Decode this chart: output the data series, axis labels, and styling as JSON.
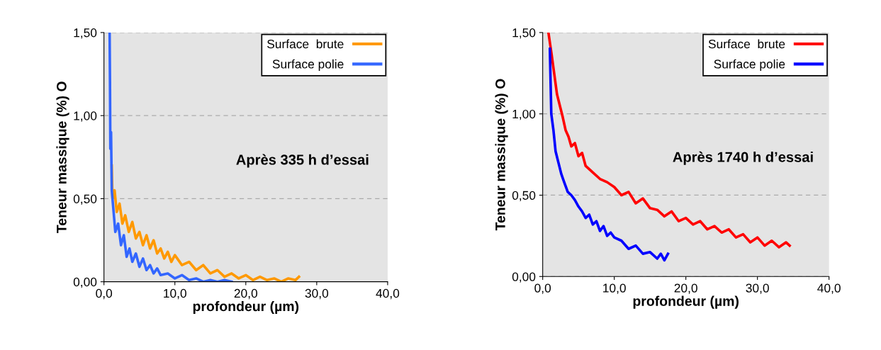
{
  "chart_data": [
    {
      "type": "line",
      "xlabel": "profondeur (µm)",
      "ylabel": "Teneur massique (%) O",
      "annotations": [
        "Après 335 h d’essai"
      ],
      "legend": "top right",
      "grid": "y",
      "line_style": "solid",
      "marker": "none",
      "xlim": [
        0,
        40
      ],
      "ylim": [
        0,
        1.5
      ],
      "xticks": [
        {
          "value": 0,
          "label": "0,0"
        },
        {
          "value": 10,
          "label": "10,0"
        },
        {
          "value": 20,
          "label": "20,0"
        },
        {
          "value": 30,
          "label": "30,0"
        },
        {
          "value": 40,
          "label": "40,0"
        }
      ],
      "yticks": [
        {
          "value": 0,
          "label": "0,00"
        },
        {
          "value": 0.5,
          "label": "0,50"
        },
        {
          "value": 1,
          "label": "1,00"
        },
        {
          "value": 1.5,
          "label": "1,50"
        }
      ],
      "series": [
        {
          "name": "Surface  brute",
          "color": "#ff9900",
          "x": [
            1.1,
            1.2,
            1.5,
            1.8,
            2.2,
            2.6,
            3.0,
            3.5,
            4.0,
            4.5,
            5.0,
            5.5,
            6.0,
            6.5,
            7.0,
            7.5,
            8.0,
            8.5,
            9.0,
            9.5,
            10.0,
            11.0,
            12.0,
            13.0,
            14.0,
            15.0,
            16.0,
            17.0,
            18.0,
            19.0,
            20.0,
            21.0,
            22.0,
            23.0,
            24.0,
            25.0,
            26.0,
            27.0,
            27.5
          ],
          "values": [
            0.7,
            0.5,
            0.55,
            0.42,
            0.47,
            0.35,
            0.4,
            0.3,
            0.36,
            0.26,
            0.3,
            0.22,
            0.28,
            0.2,
            0.25,
            0.17,
            0.2,
            0.14,
            0.18,
            0.12,
            0.16,
            0.1,
            0.12,
            0.07,
            0.1,
            0.05,
            0.07,
            0.03,
            0.05,
            0.02,
            0.04,
            0.01,
            0.03,
            0.01,
            0.02,
            0.0,
            0.02,
            0.01,
            0.03
          ]
        },
        {
          "name": "Surface polie",
          "color": "#3366ff",
          "x": [
            0.8,
            0.85,
            0.9,
            1.0,
            1.1,
            1.3,
            1.6,
            2.0,
            2.4,
            2.8,
            3.2,
            3.6,
            4.0,
            4.5,
            5.0,
            5.5,
            6.0,
            6.5,
            7.0,
            7.5,
            8.0,
            9.0,
            10.0,
            11.0,
            12.0,
            13.0,
            14.0,
            15.0,
            16.0,
            17.0,
            18.0
          ],
          "values": [
            1.5,
            1.2,
            0.8,
            0.9,
            0.55,
            0.45,
            0.3,
            0.35,
            0.22,
            0.28,
            0.15,
            0.2,
            0.12,
            0.17,
            0.09,
            0.14,
            0.07,
            0.1,
            0.05,
            0.08,
            0.04,
            0.05,
            0.02,
            0.04,
            0.01,
            0.02,
            0.0,
            0.01,
            0.0,
            0.01,
            0.0
          ]
        }
      ]
    },
    {
      "type": "line",
      "xlabel": "profondeur (µm)",
      "ylabel": "Teneur massique (%) O",
      "annotations": [
        "Après 1740 h d’essai"
      ],
      "legend": "top right",
      "grid": "y",
      "line_style": "solid",
      "marker": "none",
      "xlim": [
        0,
        40
      ],
      "ylim": [
        0,
        1.5
      ],
      "xticks": [
        {
          "value": 0,
          "label": "0,0"
        },
        {
          "value": 10,
          "label": "10,0"
        },
        {
          "value": 20,
          "label": "20,0"
        },
        {
          "value": 30,
          "label": "30,0"
        },
        {
          "value": 40,
          "label": "40,0"
        }
      ],
      "yticks": [
        {
          "value": 0,
          "label": "0,00"
        },
        {
          "value": 0.5,
          "label": "0,50"
        },
        {
          "value": 1,
          "label": "1,00"
        },
        {
          "value": 1.5,
          "label": "1,50"
        }
      ],
      "series": [
        {
          "name": "Surface  brute",
          "color": "#ff0000",
          "x": [
            0.8,
            1.2,
            1.6,
            2.0,
            2.4,
            2.8,
            3.2,
            3.6,
            4.0,
            4.5,
            5.0,
            5.5,
            6.0,
            7.0,
            8.0,
            9.0,
            10.0,
            11.0,
            12.0,
            13.0,
            14.0,
            15.0,
            16.0,
            17.0,
            18.0,
            19.0,
            20.0,
            21.0,
            22.0,
            23.0,
            24.0,
            25.0,
            26.0,
            27.0,
            28.0,
            29.0,
            30.0,
            31.0,
            32.0,
            33.0,
            34.0,
            34.5
          ],
          "values": [
            1.5,
            1.38,
            1.25,
            1.12,
            1.05,
            0.98,
            0.9,
            0.86,
            0.8,
            0.82,
            0.74,
            0.76,
            0.68,
            0.64,
            0.6,
            0.58,
            0.55,
            0.5,
            0.52,
            0.45,
            0.48,
            0.42,
            0.41,
            0.37,
            0.4,
            0.34,
            0.36,
            0.32,
            0.34,
            0.29,
            0.31,
            0.27,
            0.29,
            0.24,
            0.26,
            0.21,
            0.24,
            0.19,
            0.22,
            0.18,
            0.21,
            0.19
          ]
        },
        {
          "name": "Surface polie",
          "color": "#0000ff",
          "x": [
            1.0,
            1.2,
            1.5,
            1.8,
            2.2,
            2.6,
            3.0,
            3.5,
            4.0,
            4.5,
            5.0,
            5.5,
            6.0,
            6.5,
            7.0,
            7.5,
            8.0,
            8.5,
            9.0,
            9.5,
            10.0,
            11.0,
            12.0,
            13.0,
            14.0,
            15.0,
            16.0,
            16.5,
            17.0,
            17.5
          ],
          "values": [
            1.4,
            1.0,
            0.9,
            0.77,
            0.7,
            0.63,
            0.58,
            0.52,
            0.5,
            0.47,
            0.43,
            0.4,
            0.36,
            0.38,
            0.32,
            0.34,
            0.28,
            0.31,
            0.25,
            0.27,
            0.24,
            0.22,
            0.17,
            0.19,
            0.14,
            0.15,
            0.11,
            0.14,
            0.1,
            0.14
          ]
        }
      ]
    }
  ]
}
